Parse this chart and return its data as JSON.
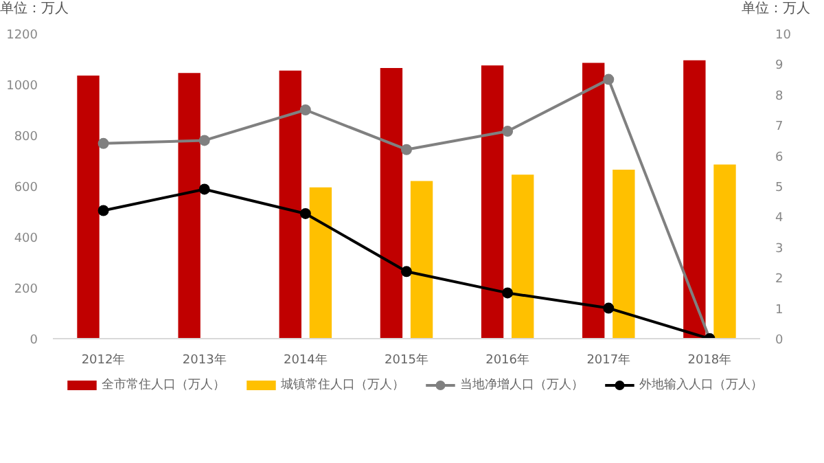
{
  "chart_data": {
    "type": "bar",
    "ylabel": "单位：万人",
    "y2label": "单位：万人",
    "categories": [
      "2012年",
      "2013年",
      "2014年",
      "2015年",
      "2016年",
      "2017年",
      "2018年"
    ],
    "ylim": [
      0,
      1200
    ],
    "yticks": [
      0,
      200,
      400,
      600,
      800,
      1000,
      1200
    ],
    "y2lim": [
      0,
      10
    ],
    "y2ticks": [
      0,
      1,
      2,
      3,
      4,
      5,
      6,
      7,
      8,
      9,
      10
    ],
    "grid": false,
    "legend": "bottom",
    "marker": "circle",
    "line_style": "solid",
    "series": [
      {
        "name": "全市常住人口（万人）",
        "color": "#c00000",
        "values": [
          1035,
          1045,
          1055,
          1065,
          1075,
          1085,
          1095
        ]
      },
      {
        "name": "城镇常住人口（万人）",
        "color": "#ffc000",
        "values": [
          null,
          null,
          595,
          620,
          645,
          665,
          685
        ]
      },
      {
        "name": "当地净增人口（万人）",
        "type": "line",
        "axis": "y2",
        "color": "#808080",
        "values": [
          6.4,
          6.5,
          7.5,
          6.2,
          6.8,
          8.5,
          0
        ]
      },
      {
        "name": "外地输入人口（万人）",
        "type": "line",
        "axis": "y2",
        "color": "#000000",
        "values": [
          4.2,
          4.9,
          4.1,
          2.2,
          1.5,
          1.0,
          0
        ]
      }
    ]
  }
}
